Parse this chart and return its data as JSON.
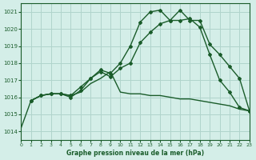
{
  "background_color": "#d4eee8",
  "grid_color": "#b0d4cc",
  "line_color": "#1a5c2a",
  "xlabel": "Graphe pression niveau de la mer (hPa)",
  "xlim": [
    0,
    23
  ],
  "ylim": [
    1013.5,
    1021.5
  ],
  "yticks": [
    1014,
    1015,
    1016,
    1017,
    1018,
    1019,
    1020,
    1021
  ],
  "xticks": [
    0,
    1,
    2,
    3,
    4,
    5,
    6,
    7,
    8,
    9,
    10,
    11,
    12,
    13,
    14,
    15,
    16,
    17,
    18,
    19,
    20,
    21,
    22,
    23
  ],
  "line1_x": [
    0,
    1,
    2,
    3,
    4,
    5,
    6,
    7,
    8,
    9,
    10,
    11,
    12,
    13,
    14,
    15,
    16,
    17,
    18,
    19,
    20,
    21,
    22,
    23
  ],
  "line1_y": [
    1014.2,
    1015.8,
    1016.1,
    1016.2,
    1016.2,
    1016.1,
    1016.3,
    1016.8,
    1017.1,
    1017.5,
    1016.3,
    1016.2,
    1016.2,
    1016.1,
    1016.1,
    1016.0,
    1015.9,
    1015.9,
    1015.8,
    1015.7,
    1015.6,
    1015.5,
    1015.3,
    1015.2
  ],
  "line2_x": [
    1,
    2,
    3,
    4,
    5,
    6,
    7,
    8,
    9,
    10,
    11,
    12,
    13,
    14,
    15,
    16,
    17,
    18,
    19,
    20,
    21,
    22,
    23
  ],
  "line2_y": [
    1015.8,
    1016.1,
    1016.2,
    1016.2,
    1016.1,
    1016.6,
    1017.1,
    1017.5,
    1017.2,
    1017.7,
    1018.0,
    1019.2,
    1019.8,
    1020.3,
    1020.5,
    1020.5,
    1020.6,
    1020.1,
    1018.5,
    1017.0,
    1016.3,
    1015.4,
    1015.2
  ],
  "line3_x": [
    1,
    2,
    3,
    4,
    5,
    6,
    7,
    8,
    9,
    10,
    11,
    12,
    13,
    14,
    15,
    16,
    17,
    18,
    19,
    20,
    21,
    22,
    23
  ],
  "line3_y": [
    1015.8,
    1016.1,
    1016.2,
    1016.2,
    1016.0,
    1016.4,
    1017.1,
    1017.6,
    1017.4,
    1018.0,
    1019.0,
    1020.4,
    1021.0,
    1021.1,
    1020.5,
    1021.1,
    1020.5,
    1020.5,
    1019.1,
    1018.5,
    1017.8,
    1017.1,
    1015.2
  ],
  "marker": "D",
  "markersize": 2.0,
  "linewidth": 1.0
}
